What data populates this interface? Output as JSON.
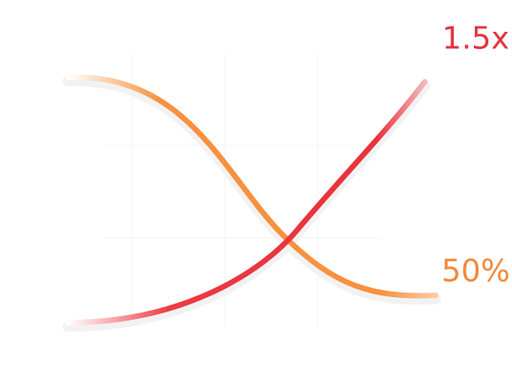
{
  "labels": {
    "top": "1.5x",
    "bottom": "50%"
  }
}
